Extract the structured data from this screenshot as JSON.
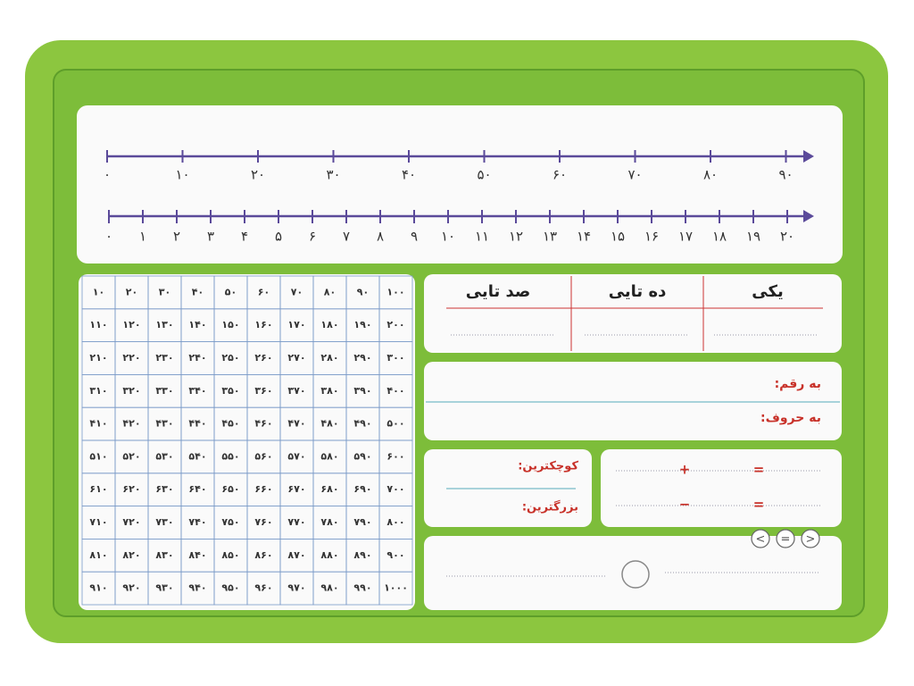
{
  "number_line_tens": [
    "۰",
    "۱۰",
    "۲۰",
    "۳۰",
    "۴۰",
    "۵۰",
    "۶۰",
    "۷۰",
    "۸۰",
    "۹۰"
  ],
  "number_line_ones": [
    "۰",
    "۱",
    "۲",
    "۳",
    "۴",
    "۵",
    "۶",
    "۷",
    "۸",
    "۹",
    "۱۰",
    "۱۱",
    "۱۲",
    "۱۳",
    "۱۴",
    "۱۵",
    "۱۶",
    "۱۷",
    "۱۸",
    "۱۹",
    "۲۰"
  ],
  "hundred_chart": {
    "rows": [
      [
        "۱۰",
        "۲۰",
        "۳۰",
        "۴۰",
        "۵۰",
        "۶۰",
        "۷۰",
        "۸۰",
        "۹۰",
        "۱۰۰"
      ],
      [
        "۱۱۰",
        "۱۲۰",
        "۱۳۰",
        "۱۴۰",
        "۱۵۰",
        "۱۶۰",
        "۱۷۰",
        "۱۸۰",
        "۱۹۰",
        "۲۰۰"
      ],
      [
        "۲۱۰",
        "۲۲۰",
        "۲۳۰",
        "۲۴۰",
        "۲۵۰",
        "۲۶۰",
        "۲۷۰",
        "۲۸۰",
        "۲۹۰",
        "۳۰۰"
      ],
      [
        "۳۱۰",
        "۳۲۰",
        "۳۳۰",
        "۳۴۰",
        "۳۵۰",
        "۳۶۰",
        "۳۷۰",
        "۳۸۰",
        "۳۹۰",
        "۴۰۰"
      ],
      [
        "۴۱۰",
        "۴۲۰",
        "۴۳۰",
        "۴۴۰",
        "۴۵۰",
        "۴۶۰",
        "۴۷۰",
        "۴۸۰",
        "۴۹۰",
        "۵۰۰"
      ],
      [
        "۵۱۰",
        "۵۲۰",
        "۵۳۰",
        "۵۴۰",
        "۵۵۰",
        "۵۶۰",
        "۵۷۰",
        "۵۸۰",
        "۵۹۰",
        "۶۰۰"
      ],
      [
        "۶۱۰",
        "۶۲۰",
        "۶۳۰",
        "۶۴۰",
        "۶۵۰",
        "۶۶۰",
        "۶۷۰",
        "۶۸۰",
        "۶۹۰",
        "۷۰۰"
      ],
      [
        "۷۱۰",
        "۷۲۰",
        "۷۳۰",
        "۷۴۰",
        "۷۵۰",
        "۷۶۰",
        "۷۷۰",
        "۷۸۰",
        "۷۹۰",
        "۸۰۰"
      ],
      [
        "۸۱۰",
        "۸۲۰",
        "۸۳۰",
        "۸۴۰",
        "۸۵۰",
        "۸۶۰",
        "۸۷۰",
        "۸۸۰",
        "۸۹۰",
        "۹۰۰"
      ],
      [
        "۹۱۰",
        "۹۲۰",
        "۹۳۰",
        "۹۴۰",
        "۹۵۰",
        "۹۶۰",
        "۹۷۰",
        "۹۸۰",
        "۹۹۰",
        "۱۰۰۰"
      ]
    ]
  },
  "place_value": {
    "headers": [
      "صد تایی",
      "ده تایی",
      "یکی"
    ]
  },
  "number_words": {
    "digits_label": "به رقم:",
    "words_label": "به حروف:"
  },
  "compare": {
    "smallest_label": "کوچکترین:",
    "largest_label": "بزرگترین:"
  },
  "equations": {
    "plus": "+",
    "equals_1": "=",
    "minus": "−",
    "equals_2": "="
  },
  "symbols": [
    "<",
    "=",
    ">"
  ]
}
